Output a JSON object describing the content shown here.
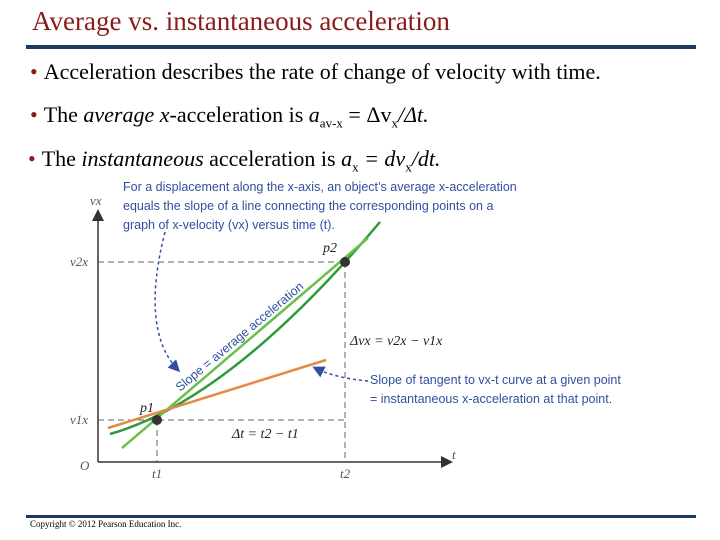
{
  "title": "Average vs. instantaneous acceleration",
  "bullets": {
    "b1": "Acceleration describes the rate of change of velocity with time.",
    "b2_prefix": "The ",
    "b2_italic": "average x",
    "b2_mid": "-acceleration is ",
    "b2_formula": "a",
    "b2_sub": "av-x",
    "b2_rest": " = Δv",
    "b2_sub2": "x",
    "b2_end": "/Δt.",
    "b3_prefix": "The ",
    "b3_italic": "instantaneous",
    "b3_mid": " acceleration is ",
    "b3_formula": "a",
    "b3_sub": "x",
    "b3_eq": " = dv",
    "b3_sub2": "x",
    "b3_end": "/dt."
  },
  "figure": {
    "caption_top": [
      "For a displacement along the x-axis, an object’s average x-acceleration",
      "equals the slope of a line connecting the corresponding points on a",
      "graph of x-velocity (vx) versus time (t)."
    ],
    "slope_label": "Slope = average acceleration",
    "delta_v": "Δvx = v2x − v1x",
    "delta_t": "Δt = t2 − t1",
    "tangent_caption": [
      "Slope of tangent to vx-t curve at a given point",
      "= instantaneous x-acceleration at that point."
    ],
    "axis": {
      "vx": "vx",
      "t": "t",
      "origin": "O",
      "v2x": "v2x",
      "v1x": "v1x",
      "t1": "t1",
      "t2": "t2",
      "p1": "p1",
      "p2": "p2"
    },
    "colors": {
      "curve": "#2e9a3b",
      "chord": "#6abf4b",
      "tangent": "#e58a45",
      "caption": "#2f4f9f"
    }
  },
  "copyright": "Copyright © 2012 Pearson Education Inc."
}
